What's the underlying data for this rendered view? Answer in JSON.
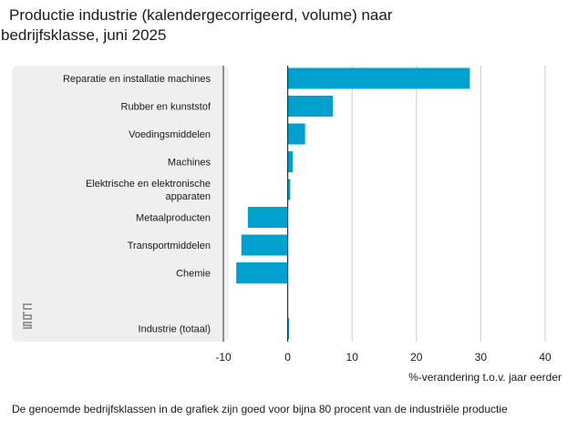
{
  "title_line1": "Productie industrie (kalendergecorrigeerd, volume) naar",
  "title_line2": "bedrijfsklasse, juni 2025",
  "footnote": "De genoemde bedrijfsklassen in de grafiek zijn goed voor bijna 80 procent van de industriële productie",
  "logo_text": "cbs",
  "colors": {
    "bar": "#00a1cd",
    "panel": "#efefef",
    "grid": "#cccccc",
    "axis": "#333333"
  },
  "chart_data": {
    "type": "bar",
    "orientation": "horizontal",
    "title": "Productie industrie (kalendergecorrigeerd, volume) naar bedrijfsklasse, juni 2025",
    "xlabel": "%-verandering t.o.v. jaar eerder",
    "ylabel": "",
    "xlim": [
      -10,
      40
    ],
    "xticks": [
      -10,
      0,
      10,
      20,
      30,
      40
    ],
    "grid": true,
    "categories": [
      [
        "Reparatie en installatie machines"
      ],
      [
        "Rubber en kunststof"
      ],
      [
        "Voedingsmiddelen"
      ],
      [
        "Machines"
      ],
      [
        "Elektrische en elektronische",
        "apparaten"
      ],
      [
        "Metaalproducten"
      ],
      [
        "Transportmiddelen"
      ],
      [
        "Chemie"
      ],
      [
        ""
      ],
      [
        "Industrie (totaal)"
      ]
    ],
    "values": [
      28.3,
      7.0,
      2.7,
      0.8,
      0.4,
      -6.2,
      -7.2,
      -8.0,
      null,
      0.2
    ]
  }
}
